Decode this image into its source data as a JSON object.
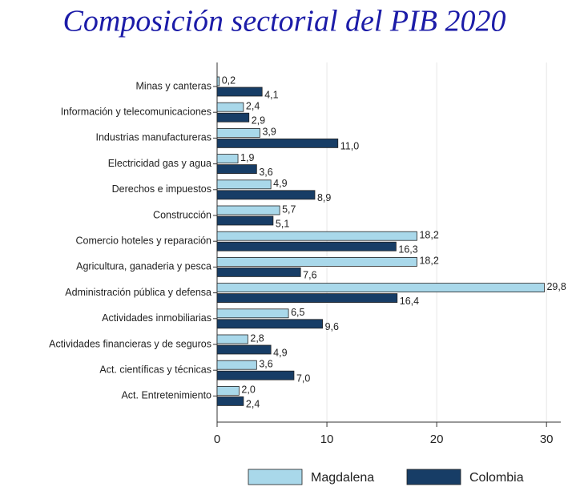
{
  "chart_data": {
    "type": "hbar",
    "title": "Composición sectorial del PIB 2020",
    "categories": [
      "Minas y canteras",
      "Información y telecomunicaciones",
      "Industrias manufactureras",
      "Electricidad gas y agua",
      "Derechos e impuestos",
      "Construcción",
      "Comercio hoteles y reparación",
      "Agricultura, ganaderia y pesca",
      "Administración pública y defensa",
      "Actividades inmobiliarias",
      "Actividades financieras y de seguros",
      "Act. científicas y técnicas",
      "Act. Entretenimiento"
    ],
    "series": [
      {
        "name": "Magdalena",
        "color": "#a9d8ea",
        "values": [
          0.2,
          2.4,
          3.9,
          1.9,
          4.9,
          5.7,
          18.2,
          18.2,
          29.8,
          6.5,
          2.8,
          3.6,
          2.0
        ],
        "value_labels": [
          "0,2",
          "2,4",
          "3,9",
          "1,9",
          "4,9",
          "5,7",
          "18,2",
          "18,2",
          "29,8",
          "6,5",
          "2,8",
          "3,6",
          "2,0"
        ]
      },
      {
        "name": "Colombia",
        "color": "#173d66",
        "values": [
          4.1,
          2.9,
          11.0,
          3.6,
          8.9,
          5.1,
          16.3,
          7.6,
          16.4,
          9.6,
          4.9,
          7.0,
          2.4
        ],
        "value_labels": [
          "4,1",
          "2,9",
          "11,0",
          "3,6",
          "8,9",
          "5,1",
          "16,3",
          "7,6",
          "16,4",
          "9,6",
          "4,9",
          "7,0",
          "2,4"
        ]
      }
    ],
    "xlim": [
      0,
      31.3
    ],
    "xticks": [
      0,
      10,
      20,
      30
    ],
    "grid": true,
    "legend": "bottom"
  }
}
